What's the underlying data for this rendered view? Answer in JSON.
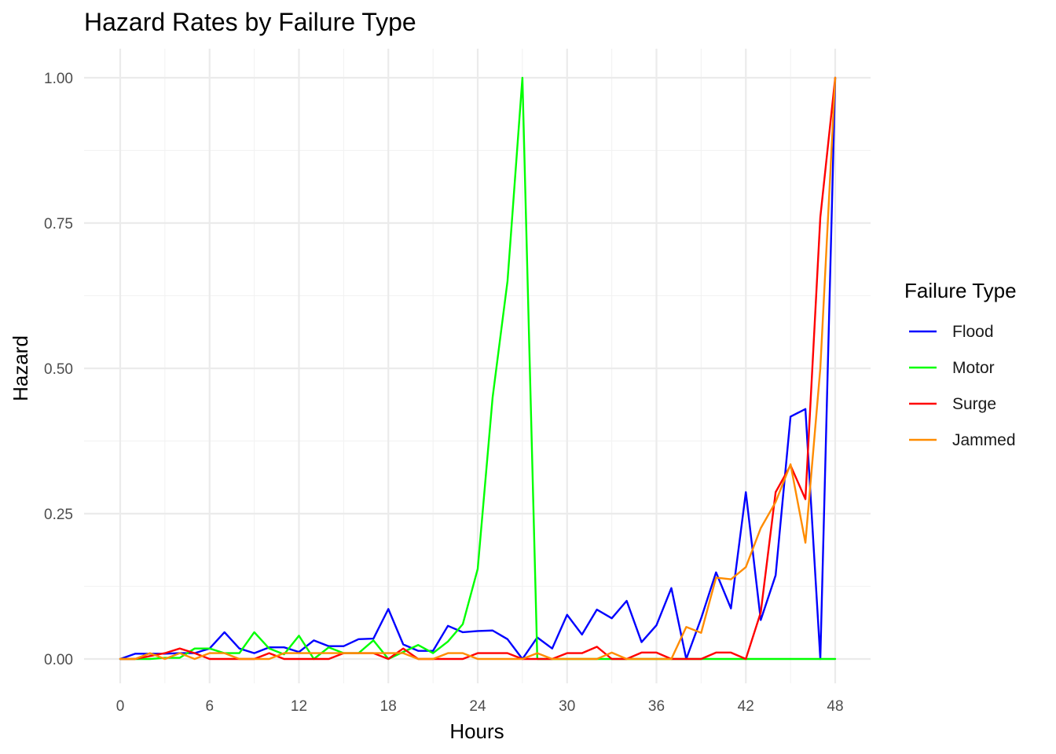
{
  "chart_data": {
    "type": "line",
    "title": "Hazard Rates by Failure Type",
    "xlabel": "Hours",
    "ylabel": "Hazard",
    "xlim": [
      0,
      48
    ],
    "ylim": [
      0,
      1
    ],
    "x_ticks": [
      0,
      6,
      12,
      18,
      24,
      30,
      36,
      42,
      48
    ],
    "x_tick_labels": [
      "0",
      "6",
      "12",
      "18",
      "24",
      "30",
      "36",
      "42",
      "48"
    ],
    "y_ticks": [
      0,
      0.25,
      0.5,
      0.75,
      1.0
    ],
    "y_tick_labels": [
      "0.00",
      "0.25",
      "0.50",
      "0.75",
      "1.00"
    ],
    "grid": true,
    "legend": {
      "title": "Failure Type",
      "position": "right"
    },
    "x": [
      0,
      1,
      2,
      3,
      4,
      5,
      6,
      7,
      8,
      9,
      10,
      11,
      12,
      13,
      14,
      15,
      16,
      17,
      18,
      19,
      20,
      21,
      22,
      23,
      24,
      25,
      26,
      27,
      28,
      29,
      30,
      31,
      32,
      33,
      34,
      35,
      36,
      37,
      38,
      39,
      40,
      41,
      42,
      43,
      44,
      45,
      46,
      47,
      48
    ],
    "series": [
      {
        "name": "Flood",
        "color": "#0000ff",
        "values": [
          0,
          0.009,
          0.009,
          0.009,
          0.01,
          0.01,
          0.018,
          0.046,
          0.018,
          0.01,
          0.02,
          0.02,
          0.012,
          0.032,
          0.022,
          0.022,
          0.034,
          0.035,
          0.086,
          0.025,
          0.014,
          0.014,
          0.057,
          0.046,
          0.048,
          0.049,
          0.034,
          0,
          0.037,
          0.018,
          0.076,
          0.042,
          0.085,
          0.07,
          0.1,
          0.029,
          0.058,
          0.122,
          0,
          0.07,
          0.149,
          0.087,
          0.287,
          0.067,
          0.144,
          0.417,
          0.43,
          0,
          1.0
        ]
      },
      {
        "name": "Motor",
        "color": "#00ff00",
        "values": [
          0,
          0,
          0,
          0.002,
          0.002,
          0.018,
          0.018,
          0.01,
          0.01,
          0.046,
          0.018,
          0.008,
          0.04,
          0,
          0.02,
          0.01,
          0.01,
          0.032,
          0,
          0.012,
          0.024,
          0.01,
          0.03,
          0.06,
          0.155,
          0.45,
          0.65,
          1.0,
          0,
          0,
          0,
          0,
          0,
          0,
          0,
          0,
          0,
          0,
          0,
          0,
          0,
          0,
          0,
          0,
          0,
          0,
          0,
          0,
          0
        ]
      },
      {
        "name": "Surge",
        "color": "#ff0000",
        "values": [
          0,
          0,
          0.005,
          0.01,
          0.018,
          0.01,
          0,
          0,
          0,
          0,
          0.01,
          0,
          0,
          0,
          0,
          0.01,
          0.01,
          0.01,
          0,
          0.018,
          0,
          0,
          0,
          0,
          0.01,
          0.01,
          0.01,
          0,
          0,
          0,
          0.01,
          0.01,
          0.021,
          0,
          0,
          0.011,
          0.011,
          0,
          0,
          0,
          0.011,
          0.011,
          0,
          0.08,
          0.287,
          0.333,
          0.275,
          0.76,
          1.0
        ]
      },
      {
        "name": "Jammed",
        "color": "#ff8c00",
        "values": [
          0,
          0,
          0.01,
          0,
          0.01,
          0,
          0.01,
          0.01,
          0,
          0,
          0,
          0.01,
          0.01,
          0.01,
          0.01,
          0.01,
          0.01,
          0.01,
          0.01,
          0.01,
          0,
          0,
          0.01,
          0.01,
          0,
          0,
          0,
          0,
          0.01,
          0,
          0,
          0,
          0,
          0.011,
          0,
          0,
          0,
          0,
          0.055,
          0.045,
          0.14,
          0.137,
          0.158,
          0.225,
          0.27,
          0.335,
          0.2,
          0.5,
          1.0
        ]
      }
    ]
  }
}
